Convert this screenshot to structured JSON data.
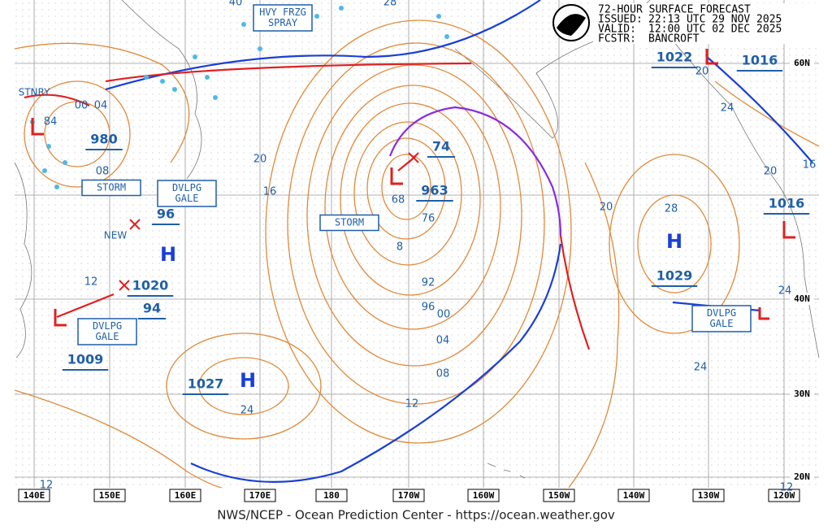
{
  "header": {
    "title": "72-HOUR SURFACE FORECAST",
    "issued_label": "ISSUED:",
    "issued": "22:13 UTC 29 NOV 2025",
    "valid_label": "VALID:",
    "valid": "12:00 UTC 02 DEC 2025",
    "forecaster_label": "FCSTR:",
    "forecaster": "BANCROFT"
  },
  "footer": "NWS/NCEP - Ocean Prediction Center - https://ocean.weather.gov",
  "longitudes": [
    "140E",
    "150E",
    "160E",
    "170E",
    "180",
    "170W",
    "160W",
    "150W",
    "140W",
    "130W",
    "120W"
  ],
  "latitudes": [
    "60N",
    "40N",
    "30N",
    "20N"
  ],
  "pressure_centers": [
    "980",
    "96",
    "1020",
    "94",
    "1009",
    "1027",
    "963",
    "74",
    "1022",
    "1016",
    "1016",
    "1029"
  ],
  "isobar_labels": [
    "00",
    "04",
    "84",
    "08",
    "20",
    "16",
    "68",
    "76",
    "8",
    "92",
    "96",
    "00",
    "04",
    "08",
    "12",
    "24",
    "20",
    "28",
    "24",
    "20",
    "16",
    "24",
    "24",
    "20",
    "12",
    "12",
    "12",
    "40",
    "28"
  ],
  "highs": [
    "H",
    "H",
    "H"
  ],
  "boxes": [
    {
      "lines": [
        "HVY FRZG",
        "SPRAY"
      ]
    },
    {
      "lines": [
        "STORM"
      ]
    },
    {
      "lines": [
        "DVLPG",
        "GALE"
      ]
    },
    {
      "lines": [
        "STORM"
      ]
    },
    {
      "lines": [
        "DVLPG",
        "GALE"
      ]
    },
    {
      "lines": [
        "DVLPG",
        "GALE"
      ]
    }
  ],
  "notes": [
    "STNRY",
    "NEW"
  ]
}
